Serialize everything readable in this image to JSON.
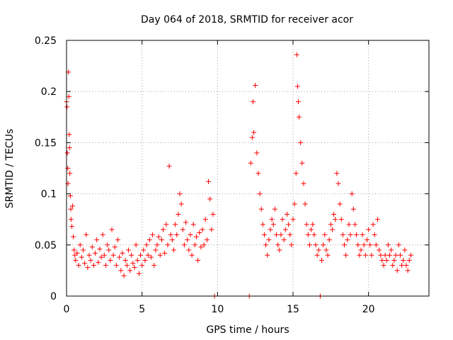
{
  "chart_data": {
    "type": "scatter",
    "title": "Day 064 of 2018, SRMTID for receiver acor",
    "xlabel": "GPS time / hours",
    "ylabel": "SRMTID / TECUs",
    "xlim": [
      0,
      24
    ],
    "ylim": [
      0,
      0.25
    ],
    "x_ticks": [
      0,
      5,
      10,
      15,
      20
    ],
    "x_tick_labels": [
      "0",
      "5",
      "10",
      "15",
      "20"
    ],
    "y_ticks": [
      0,
      0.05,
      0.1,
      0.15,
      0.2,
      0.25
    ],
    "y_tick_labels": [
      "0",
      "0.05",
      "0.1",
      "0.15",
      "0.2",
      "0.25"
    ],
    "grid": true,
    "marker": "+",
    "series": [
      {
        "name": "SRMTID",
        "color": "#ff0000",
        "points": [
          [
            0.0,
            0.19
          ],
          [
            0.03,
            0.185
          ],
          [
            0.05,
            0.14
          ],
          [
            0.08,
            0.125
          ],
          [
            0.1,
            0.11
          ],
          [
            0.12,
            0.219
          ],
          [
            0.15,
            0.195
          ],
          [
            0.18,
            0.158
          ],
          [
            0.2,
            0.145
          ],
          [
            0.22,
            0.12
          ],
          [
            0.25,
            0.098
          ],
          [
            0.28,
            0.085
          ],
          [
            0.3,
            0.075
          ],
          [
            0.35,
            0.068
          ],
          [
            0.4,
            0.088
          ],
          [
            0.45,
            0.058
          ],
          [
            0.5,
            0.045
          ],
          [
            0.55,
            0.04
          ],
          [
            0.6,
            0.035
          ],
          [
            0.7,
            0.042
          ],
          [
            0.8,
            0.03
          ],
          [
            0.9,
            0.05
          ],
          [
            1.0,
            0.038
          ],
          [
            1.1,
            0.045
          ],
          [
            1.2,
            0.032
          ],
          [
            1.3,
            0.06
          ],
          [
            1.4,
            0.028
          ],
          [
            1.5,
            0.04
          ],
          [
            1.6,
            0.035
          ],
          [
            1.7,
            0.048
          ],
          [
            1.8,
            0.03
          ],
          [
            1.9,
            0.042
          ],
          [
            2.0,
            0.055
          ],
          [
            2.1,
            0.033
          ],
          [
            2.2,
            0.046
          ],
          [
            2.3,
            0.038
          ],
          [
            2.4,
            0.06
          ],
          [
            2.5,
            0.04
          ],
          [
            2.6,
            0.03
          ],
          [
            2.7,
            0.05
          ],
          [
            2.8,
            0.045
          ],
          [
            2.9,
            0.035
          ],
          [
            3.0,
            0.065
          ],
          [
            3.1,
            0.04
          ],
          [
            3.2,
            0.048
          ],
          [
            3.3,
            0.03
          ],
          [
            3.4,
            0.055
          ],
          [
            3.5,
            0.038
          ],
          [
            3.6,
            0.025
          ],
          [
            3.7,
            0.042
          ],
          [
            3.8,
            0.02
          ],
          [
            3.9,
            0.035
          ],
          [
            4.0,
            0.03
          ],
          [
            4.1,
            0.045
          ],
          [
            4.2,
            0.025
          ],
          [
            4.3,
            0.04
          ],
          [
            4.4,
            0.032
          ],
          [
            4.5,
            0.028
          ],
          [
            4.6,
            0.05
          ],
          [
            4.7,
            0.035
          ],
          [
            4.8,
            0.022
          ],
          [
            4.9,
            0.04
          ],
          [
            5.0,
            0.03
          ],
          [
            5.1,
            0.045
          ],
          [
            5.2,
            0.035
          ],
          [
            5.3,
            0.05
          ],
          [
            5.4,
            0.04
          ],
          [
            5.5,
            0.055
          ],
          [
            5.6,
            0.038
          ],
          [
            5.7,
            0.06
          ],
          [
            5.8,
            0.03
          ],
          [
            5.9,
            0.045
          ],
          [
            6.0,
            0.05
          ],
          [
            6.1,
            0.058
          ],
          [
            6.2,
            0.04
          ],
          [
            6.3,
            0.055
          ],
          [
            6.4,
            0.065
          ],
          [
            6.5,
            0.042
          ],
          [
            6.6,
            0.07
          ],
          [
            6.7,
            0.05
          ],
          [
            6.8,
            0.127
          ],
          [
            6.9,
            0.06
          ],
          [
            7.0,
            0.055
          ],
          [
            7.1,
            0.045
          ],
          [
            7.2,
            0.07
          ],
          [
            7.3,
            0.06
          ],
          [
            7.4,
            0.08
          ],
          [
            7.5,
            0.1
          ],
          [
            7.6,
            0.09
          ],
          [
            7.7,
            0.065
          ],
          [
            7.8,
            0.05
          ],
          [
            7.9,
            0.072
          ],
          [
            8.0,
            0.055
          ],
          [
            8.1,
            0.045
          ],
          [
            8.2,
            0.06
          ],
          [
            8.3,
            0.04
          ],
          [
            8.4,
            0.07
          ],
          [
            8.5,
            0.05
          ],
          [
            8.6,
            0.058
          ],
          [
            8.7,
            0.035
          ],
          [
            8.8,
            0.062
          ],
          [
            8.9,
            0.048
          ],
          [
            9.0,
            0.065
          ],
          [
            9.1,
            0.05
          ],
          [
            9.2,
            0.075
          ],
          [
            9.3,
            0.055
          ],
          [
            9.4,
            0.112
          ],
          [
            9.5,
            0.095
          ],
          [
            9.6,
            0.065
          ],
          [
            9.7,
            0.08
          ],
          [
            9.8,
            0.0
          ],
          [
            12.1,
            0.0
          ],
          [
            12.2,
            0.13
          ],
          [
            12.3,
            0.155
          ],
          [
            12.35,
            0.19
          ],
          [
            12.4,
            0.16
          ],
          [
            12.5,
            0.206
          ],
          [
            12.6,
            0.14
          ],
          [
            12.7,
            0.12
          ],
          [
            12.8,
            0.1
          ],
          [
            12.9,
            0.085
          ],
          [
            13.0,
            0.07
          ],
          [
            13.1,
            0.06
          ],
          [
            13.2,
            0.05
          ],
          [
            13.3,
            0.04
          ],
          [
            13.4,
            0.055
          ],
          [
            13.5,
            0.065
          ],
          [
            13.6,
            0.075
          ],
          [
            13.7,
            0.07
          ],
          [
            13.8,
            0.085
          ],
          [
            13.9,
            0.06
          ],
          [
            14.0,
            0.05
          ],
          [
            14.1,
            0.045
          ],
          [
            14.2,
            0.06
          ],
          [
            14.3,
            0.075
          ],
          [
            14.4,
            0.055
          ],
          [
            14.5,
            0.065
          ],
          [
            14.6,
            0.08
          ],
          [
            14.7,
            0.07
          ],
          [
            14.8,
            0.06
          ],
          [
            14.9,
            0.05
          ],
          [
            15.0,
            0.075
          ],
          [
            15.1,
            0.09
          ],
          [
            15.2,
            0.12
          ],
          [
            15.25,
            0.236
          ],
          [
            15.3,
            0.205
          ],
          [
            15.35,
            0.19
          ],
          [
            15.4,
            0.175
          ],
          [
            15.5,
            0.15
          ],
          [
            15.6,
            0.13
          ],
          [
            15.7,
            0.11
          ],
          [
            15.8,
            0.09
          ],
          [
            15.9,
            0.07
          ],
          [
            16.0,
            0.06
          ],
          [
            16.1,
            0.05
          ],
          [
            16.2,
            0.065
          ],
          [
            16.3,
            0.07
          ],
          [
            16.4,
            0.06
          ],
          [
            16.5,
            0.05
          ],
          [
            16.6,
            0.04
          ],
          [
            16.7,
            0.045
          ],
          [
            16.8,
            0.0
          ],
          [
            16.9,
            0.035
          ],
          [
            17.0,
            0.05
          ],
          [
            17.1,
            0.06
          ],
          [
            17.2,
            0.045
          ],
          [
            17.3,
            0.04
          ],
          [
            17.4,
            0.055
          ],
          [
            17.5,
            0.07
          ],
          [
            17.6,
            0.065
          ],
          [
            17.7,
            0.08
          ],
          [
            17.8,
            0.075
          ],
          [
            17.9,
            0.12
          ],
          [
            18.0,
            0.11
          ],
          [
            18.1,
            0.09
          ],
          [
            18.2,
            0.075
          ],
          [
            18.3,
            0.06
          ],
          [
            18.4,
            0.05
          ],
          [
            18.5,
            0.04
          ],
          [
            18.6,
            0.055
          ],
          [
            18.7,
            0.07
          ],
          [
            18.8,
            0.06
          ],
          [
            18.9,
            0.1
          ],
          [
            19.0,
            0.085
          ],
          [
            19.1,
            0.07
          ],
          [
            19.2,
            0.06
          ],
          [
            19.3,
            0.05
          ],
          [
            19.4,
            0.04
          ],
          [
            19.5,
            0.045
          ],
          [
            19.6,
            0.06
          ],
          [
            19.7,
            0.05
          ],
          [
            19.8,
            0.04
          ],
          [
            19.9,
            0.055
          ],
          [
            20.0,
            0.065
          ],
          [
            20.1,
            0.05
          ],
          [
            20.2,
            0.04
          ],
          [
            20.3,
            0.07
          ],
          [
            20.4,
            0.06
          ],
          [
            20.5,
            0.05
          ],
          [
            20.6,
            0.075
          ],
          [
            20.7,
            0.045
          ],
          [
            20.8,
            0.04
          ],
          [
            20.9,
            0.035
          ],
          [
            21.0,
            0.03
          ],
          [
            21.1,
            0.04
          ],
          [
            21.2,
            0.035
          ],
          [
            21.3,
            0.05
          ],
          [
            21.4,
            0.04
          ],
          [
            21.5,
            0.045
          ],
          [
            21.6,
            0.03
          ],
          [
            21.7,
            0.035
          ],
          [
            21.8,
            0.04
          ],
          [
            21.9,
            0.025
          ],
          [
            22.0,
            0.05
          ],
          [
            22.1,
            0.04
          ],
          [
            22.2,
            0.03
          ],
          [
            22.3,
            0.035
          ],
          [
            22.4,
            0.045
          ],
          [
            22.5,
            0.03
          ],
          [
            22.6,
            0.025
          ],
          [
            22.7,
            0.035
          ],
          [
            22.8,
            0.04
          ]
        ]
      }
    ]
  }
}
